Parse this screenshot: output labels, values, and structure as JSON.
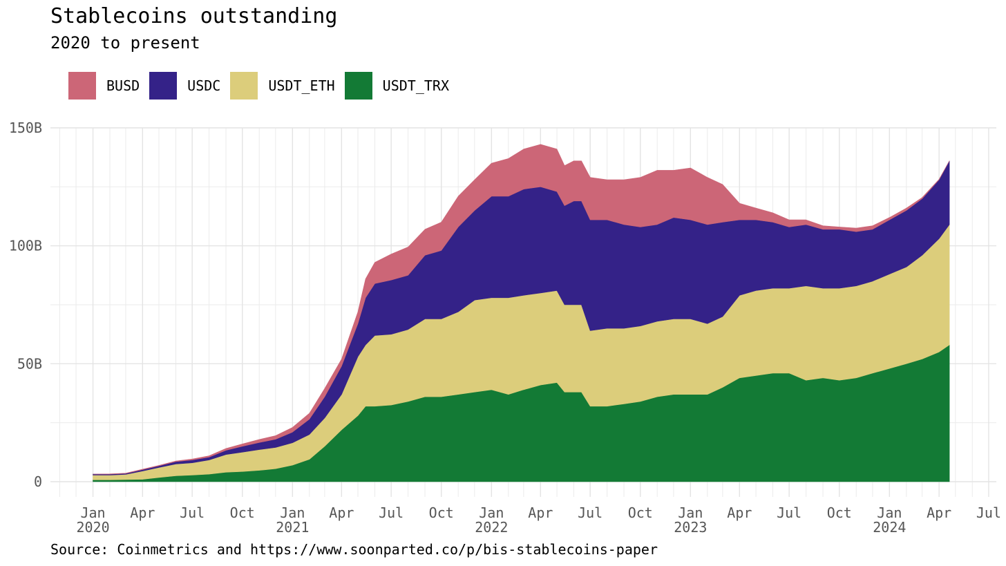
{
  "chart_data": {
    "type": "area",
    "stacked": true,
    "title": "Stablecoins outstanding",
    "subtitle": "2020 to present",
    "source": "Source: Coinmetrics and https://www.soonparted.co/p/bis-stablecoins-paper",
    "legend_position": "top-left",
    "grid": true,
    "ylim": [
      0,
      150000000000
    ],
    "xlim": [
      "2019-10-15",
      "2024-07-15"
    ],
    "y_ticks": [
      0,
      50000000000,
      100000000000,
      150000000000
    ],
    "y_tick_labels": [
      "0",
      "50B",
      "100B",
      "150B"
    ],
    "x_ticks": [
      {
        "date": "2020-01-01",
        "label": "Jan",
        "year": "2020"
      },
      {
        "date": "2020-04-01",
        "label": "Apr",
        "year": ""
      },
      {
        "date": "2020-07-01",
        "label": "Jul",
        "year": ""
      },
      {
        "date": "2020-10-01",
        "label": "Oct",
        "year": ""
      },
      {
        "date": "2021-01-01",
        "label": "Jan",
        "year": "2021"
      },
      {
        "date": "2021-04-01",
        "label": "Apr",
        "year": ""
      },
      {
        "date": "2021-07-01",
        "label": "Jul",
        "year": ""
      },
      {
        "date": "2021-10-01",
        "label": "Oct",
        "year": ""
      },
      {
        "date": "2022-01-01",
        "label": "Jan",
        "year": "2022"
      },
      {
        "date": "2022-04-01",
        "label": "Apr",
        "year": ""
      },
      {
        "date": "2022-07-01",
        "label": "Jul",
        "year": ""
      },
      {
        "date": "2022-10-01",
        "label": "Oct",
        "year": ""
      },
      {
        "date": "2023-01-01",
        "label": "Jan",
        "year": "2023"
      },
      {
        "date": "2023-04-01",
        "label": "Apr",
        "year": ""
      },
      {
        "date": "2023-07-01",
        "label": "Jul",
        "year": ""
      },
      {
        "date": "2023-10-01",
        "label": "Oct",
        "year": ""
      },
      {
        "date": "2024-01-01",
        "label": "Jan",
        "year": "2024"
      },
      {
        "date": "2024-04-01",
        "label": "Apr",
        "year": ""
      },
      {
        "date": "2024-07-01",
        "label": "Jul",
        "year": ""
      }
    ],
    "x": [
      "2020-01-01",
      "2020-02-01",
      "2020-03-01",
      "2020-04-01",
      "2020-05-01",
      "2020-06-01",
      "2020-07-01",
      "2020-08-01",
      "2020-09-01",
      "2020-10-01",
      "2020-11-01",
      "2020-12-01",
      "2021-01-01",
      "2021-02-01",
      "2021-03-01",
      "2021-04-01",
      "2021-05-01",
      "2021-05-15",
      "2021-06-01",
      "2021-07-01",
      "2021-08-01",
      "2021-09-01",
      "2021-10-01",
      "2021-11-01",
      "2021-12-01",
      "2022-01-01",
      "2022-02-01",
      "2022-03-01",
      "2022-04-01",
      "2022-05-01",
      "2022-05-15",
      "2022-06-01",
      "2022-06-15",
      "2022-07-01",
      "2022-08-01",
      "2022-09-01",
      "2022-10-01",
      "2022-11-01",
      "2022-12-01",
      "2023-01-01",
      "2023-02-01",
      "2023-03-01",
      "2023-04-01",
      "2023-05-01",
      "2023-06-01",
      "2023-07-01",
      "2023-08-01",
      "2023-09-01",
      "2023-10-01",
      "2023-11-01",
      "2023-12-01",
      "2024-01-01",
      "2024-02-01",
      "2024-03-01",
      "2024-04-01",
      "2024-04-20"
    ],
    "series": [
      {
        "name": "USDT_TRX",
        "color": "#137a35",
        "values": [
          0.8,
          0.8,
          0.9,
          1.0,
          1.8,
          2.5,
          2.8,
          3.2,
          4.0,
          4.3,
          4.8,
          5.5,
          7.0,
          9.5,
          15.0,
          22.0,
          28.0,
          32.0,
          32.0,
          32.5,
          34.0,
          36.0,
          36.0,
          37.0,
          38.0,
          39.0,
          37.0,
          39.0,
          41.0,
          42.0,
          38.0,
          38.0,
          38.0,
          32.0,
          32.0,
          33.0,
          34.0,
          36.0,
          37.0,
          37.0,
          37.0,
          40.0,
          44.0,
          45.0,
          46.0,
          46.0,
          43.0,
          44.0,
          43.0,
          44.0,
          46.0,
          48.0,
          50.0,
          52.0,
          55.0,
          58.0
        ]
      },
      {
        "name": "USDT_ETH",
        "color": "#dccd7b",
        "values": [
          2.0,
          2.0,
          2.2,
          3.5,
          4.2,
          5.0,
          5.2,
          6.0,
          7.5,
          8.2,
          8.8,
          9.0,
          9.5,
          10.5,
          12.0,
          15.0,
          25.0,
          26.0,
          30.0,
          30.0,
          30.5,
          33.0,
          33.0,
          35.0,
          39.0,
          39.0,
          41.0,
          40.0,
          39.0,
          39.0,
          37.0,
          37.0,
          37.0,
          32.0,
          33.0,
          32.0,
          32.0,
          32.0,
          32.0,
          32.0,
          30.0,
          30.0,
          35.0,
          36.0,
          36.0,
          36.0,
          40.0,
          38.0,
          39.0,
          39.0,
          39.0,
          40.0,
          41.0,
          44.0,
          48.0,
          51.0
        ]
      },
      {
        "name": "USDC",
        "color": "#342288",
        "values": [
          0.4,
          0.4,
          0.4,
          0.6,
          0.7,
          1.0,
          1.2,
          1.2,
          1.8,
          2.5,
          3.0,
          3.5,
          4.5,
          6.5,
          9.0,
          12.0,
          14.0,
          20.0,
          22.0,
          23.0,
          23.0,
          27.0,
          29.0,
          36.0,
          38.0,
          43.0,
          43.0,
          45.0,
          45.0,
          42.0,
          42.0,
          44.0,
          44.0,
          47.0,
          46.0,
          44.0,
          42.0,
          41.0,
          43.0,
          42.0,
          42.0,
          40.0,
          32.0,
          30.0,
          28.0,
          26.0,
          26.0,
          25.0,
          25.0,
          23.0,
          22.0,
          23.0,
          24.0,
          24.0,
          25.0,
          27.0
        ]
      },
      {
        "name": "BUSD",
        "color": "#cc6677",
        "values": [
          0.0,
          0.1,
          0.1,
          0.2,
          0.2,
          0.3,
          0.4,
          0.6,
          0.8,
          1.0,
          1.3,
          1.5,
          2.0,
          2.5,
          3.5,
          3.0,
          5.0,
          8.0,
          9.0,
          11.0,
          12.0,
          11.0,
          12.0,
          13.0,
          13.0,
          14.0,
          16.0,
          17.0,
          18.0,
          18.0,
          17.0,
          17.0,
          17.0,
          18.0,
          17.0,
          19.0,
          21.0,
          23.0,
          20.0,
          22.0,
          20.0,
          16.0,
          7.0,
          5.0,
          4.0,
          3.0,
          2.0,
          1.5,
          1.0,
          1.5,
          1.5,
          1.0,
          1.0,
          0.5,
          0.2,
          0.0
        ]
      }
    ],
    "value_unit": "billions",
    "legend_order": [
      "BUSD",
      "USDC",
      "USDT_ETH",
      "USDT_TRX"
    ]
  }
}
